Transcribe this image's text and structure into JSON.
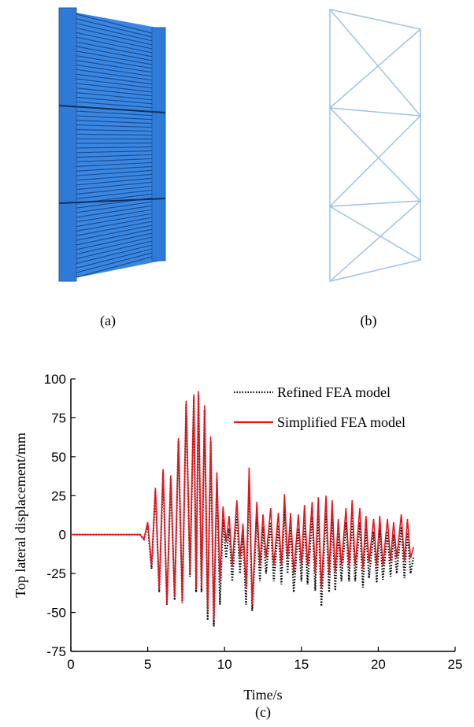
{
  "panels": [
    "(a)",
    "(b)",
    "(c)"
  ],
  "chart_data": {
    "type": "line",
    "xlabel": "Time/s",
    "ylabel": "Top lateral displacement/mm",
    "xlim": [
      0,
      25
    ],
    "xticks": [
      0,
      5,
      10,
      15,
      20,
      25
    ],
    "ylim": [
      -75,
      100
    ],
    "yticks": [
      -75,
      -50,
      -25,
      0,
      25,
      50,
      75,
      100
    ],
    "legend": "upper right",
    "x": [
      0,
      4.5,
      4.75,
      5.0,
      5.25,
      5.5,
      5.75,
      6.0,
      6.25,
      6.5,
      6.75,
      7.0,
      7.25,
      7.5,
      7.75,
      8.0,
      8.15,
      8.3,
      8.5,
      8.7,
      8.9,
      9.1,
      9.3,
      9.5,
      9.7,
      9.9,
      10.1,
      10.3,
      10.5,
      10.8,
      11.0,
      11.2,
      11.4,
      11.6,
      11.8,
      12.1,
      12.3,
      12.5,
      12.7,
      13.0,
      13.2,
      13.5,
      13.7,
      13.9,
      14.1,
      14.3,
      14.5,
      14.8,
      15.0,
      15.2,
      15.4,
      15.7,
      15.9,
      16.1,
      16.3,
      16.6,
      16.8,
      17.0,
      17.2,
      17.4,
      17.6,
      17.9,
      18.1,
      18.3,
      18.5,
      18.8,
      19.0,
      19.2,
      19.4,
      19.7,
      19.9,
      20.1,
      20.3,
      20.6,
      20.8,
      21.0,
      21.2,
      21.5,
      21.7,
      21.9,
      22.1,
      22.3
    ],
    "series": [
      {
        "name": "Refined FEA model",
        "color": "#000000",
        "dashed": true,
        "values": [
          0,
          0,
          -3,
          6,
          -22,
          28,
          -37,
          40,
          -45,
          36,
          -42,
          60,
          -44,
          84,
          -27,
          88,
          -37,
          90,
          -37,
          80,
          -55,
          60,
          -59,
          36,
          -45,
          10,
          -15,
          4,
          -30,
          14,
          -25,
          0,
          -45,
          35,
          -49,
          12,
          -30,
          5,
          -25,
          8,
          -30,
          6,
          -32,
          18,
          -25,
          6,
          -37,
          4,
          -30,
          10,
          -32,
          12,
          -36,
          15,
          -46,
          16,
          -37,
          13,
          -36,
          2,
          -30,
          8,
          -30,
          13,
          -30,
          8,
          -34,
          4,
          -28,
          2,
          -31,
          4,
          -29,
          2,
          -27,
          0,
          -25,
          5,
          -28,
          2,
          -25,
          -14
        ]
      },
      {
        "name": "Simplified FEA model",
        "color": "#e8141c",
        "dashed": false,
        "values": [
          0,
          0,
          -3,
          8,
          -20,
          30,
          -35,
          42,
          -44,
          38,
          -40,
          62,
          -43,
          86,
          -25,
          90,
          -35,
          92,
          -35,
          83,
          -50,
          63,
          -55,
          40,
          -30,
          18,
          -5,
          12,
          -20,
          22,
          -15,
          7,
          -35,
          43,
          -45,
          21,
          -20,
          13,
          -15,
          17,
          -20,
          14,
          -20,
          26,
          -15,
          14,
          -25,
          13,
          -20,
          19,
          -20,
          21,
          -25,
          24,
          -35,
          25,
          -25,
          22,
          -25,
          10,
          -20,
          17,
          -20,
          22,
          -20,
          17,
          -22,
          12,
          -18,
          10,
          -20,
          12,
          -20,
          10,
          -17,
          8,
          -15,
          13,
          -17,
          10,
          -15,
          -8
        ]
      }
    ]
  }
}
